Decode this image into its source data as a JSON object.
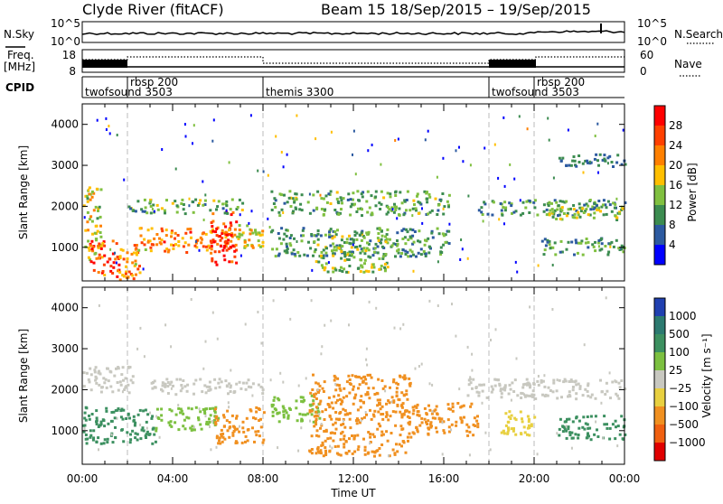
{
  "header": {
    "station": "Clyde River (fitACF)",
    "beam_info": "Beam 15   18/Sep/2015 – 19/Sep/2015"
  },
  "noise_panel": {
    "left_label": "N.Sky",
    "right_label": "N.Search",
    "left_ticks": [
      "10^5",
      "10^0"
    ],
    "right_ticks": [
      "10^5",
      "10^0"
    ]
  },
  "freq_panel": {
    "left_label_1": "Freq.",
    "left_label_2": "[MHz]",
    "right_label": "Nave",
    "left_ticks": [
      "18",
      "8"
    ],
    "right_ticks": [
      "60",
      "0"
    ]
  },
  "cpid_panel": {
    "label": "CPID",
    "modes": [
      {
        "name": "twofsound",
        "id": "3503",
        "start_hour": 0.0
      },
      {
        "name": "rbsp",
        "id": "200",
        "start_hour": 2.0
      },
      {
        "name": "themis",
        "id": "3300",
        "start_hour": 8.0
      },
      {
        "name": "twofsound",
        "id": "3503",
        "start_hour": 18.0
      },
      {
        "name": "rbsp",
        "id": "200",
        "start_hour": 20.0
      }
    ]
  },
  "chart_data": [
    {
      "type": "heatmap",
      "panel": "power",
      "xlabel": "",
      "ylabel": "Slant Range [km]",
      "x_range_hours": [
        0,
        24
      ],
      "y_range_km": [
        180,
        4500
      ],
      "y_ticks": [
        1000,
        2000,
        3000,
        4000
      ],
      "colorbar": {
        "label": "Power [dB]",
        "ticks": [
          "28",
          "24",
          "20",
          "16",
          "12",
          "8",
          "4"
        ],
        "colors": [
          "#ff0000",
          "#ff4000",
          "#ff8000",
          "#ffbf00",
          "#80c040",
          "#3c8c50",
          "#2c5aa0",
          "#0000ff"
        ]
      },
      "bands": [
        {
          "x": [
            0,
            0.8
          ],
          "y": [
            700,
            2500
          ],
          "value": 16
        },
        {
          "x": [
            0.3,
            1.6
          ],
          "y": [
            280,
            1200
          ],
          "value": 26
        },
        {
          "x": [
            1.6,
            2.5
          ],
          "y": [
            200,
            1100
          ],
          "value": 22
        },
        {
          "x": [
            2.5,
            6.8
          ],
          "y": [
            900,
            1500
          ],
          "value": 22
        },
        {
          "x": [
            5.6,
            6.8
          ],
          "y": [
            600,
            1900
          ],
          "value": 28
        },
        {
          "x": [
            6.8,
            8.0
          ],
          "y": [
            1000,
            1600
          ],
          "value": 18
        },
        {
          "x": [
            2.0,
            7.2
          ],
          "y": [
            1850,
            2200
          ],
          "value": 12
        },
        {
          "x": [
            8.3,
            16.2
          ],
          "y": [
            1800,
            2400
          ],
          "value": 12
        },
        {
          "x": [
            8.3,
            16.2
          ],
          "y": [
            800,
            1500
          ],
          "value": 10
        },
        {
          "x": [
            10.2,
            13.5
          ],
          "y": [
            400,
            1400
          ],
          "value": 14
        },
        {
          "x": [
            17.5,
            24
          ],
          "y": [
            1800,
            2200
          ],
          "value": 10
        },
        {
          "x": [
            20.5,
            24
          ],
          "y": [
            1700,
            2100
          ],
          "value": 14
        },
        {
          "x": [
            20.0,
            24
          ],
          "y": [
            850,
            1250
          ],
          "value": 10
        },
        {
          "x": [
            21.0,
            24
          ],
          "y": [
            3000,
            3300
          ],
          "value": 8
        }
      ]
    },
    {
      "type": "heatmap",
      "panel": "velocity",
      "xlabel": "Time UT",
      "ylabel": "Slant Range [km]",
      "x_range_hours": [
        0,
        24
      ],
      "y_range_km": [
        180,
        4500
      ],
      "y_ticks": [
        1000,
        2000,
        3000,
        4000
      ],
      "x_tick_labels": [
        "00:00",
        "04:00",
        "08:00",
        "12:00",
        "16:00",
        "20:00",
        "00:00"
      ],
      "colorbar": {
        "label": "Velocity [m s⁻¹]",
        "ticks": [
          "1000",
          "500",
          "100",
          "25",
          "−25",
          "−100",
          "−500",
          "−1000"
        ],
        "colors": [
          "#2040b0",
          "#2c7a70",
          "#3c9060",
          "#7cc040",
          "#c8c8c0",
          "#e8d040",
          "#f09020",
          "#f06010",
          "#e00000"
        ]
      },
      "bands": [
        {
          "x": [
            0,
            2.2
          ],
          "y": [
            1900,
            2600
          ],
          "value": 0
        },
        {
          "x": [
            0,
            3.2
          ],
          "y": [
            700,
            1600
          ],
          "value": 300
        },
        {
          "x": [
            3.2,
            6.0
          ],
          "y": [
            1000,
            1600
          ],
          "value": 80
        },
        {
          "x": [
            5.8,
            8.0
          ],
          "y": [
            700,
            1600
          ],
          "value": -150
        },
        {
          "x": [
            3.0,
            8.0
          ],
          "y": [
            1900,
            2300
          ],
          "value": 0
        },
        {
          "x": [
            8.3,
            10.5
          ],
          "y": [
            1200,
            1900
          ],
          "value": 80
        },
        {
          "x": [
            10.0,
            14.5
          ],
          "y": [
            400,
            2400
          ],
          "value": -150
        },
        {
          "x": [
            14.5,
            17.5
          ],
          "y": [
            900,
            1700
          ],
          "value": -150
        },
        {
          "x": [
            17.0,
            24
          ],
          "y": [
            1800,
            2300
          ],
          "value": 0
        },
        {
          "x": [
            21.0,
            24
          ],
          "y": [
            800,
            1400
          ],
          "value": 300
        },
        {
          "x": [
            18.5,
            20.0
          ],
          "y": [
            900,
            1500
          ],
          "value": -60
        }
      ]
    }
  ]
}
